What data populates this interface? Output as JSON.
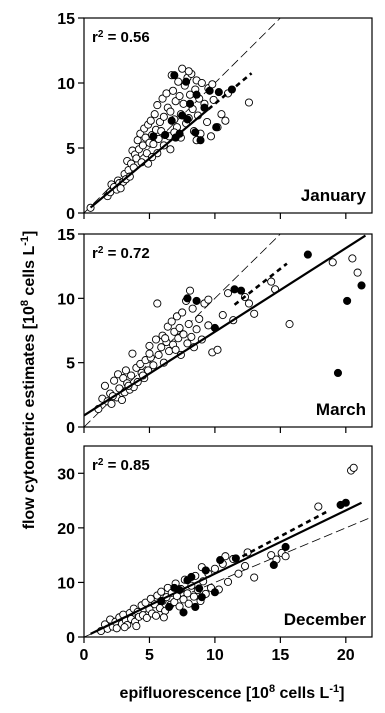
{
  "chart_data": {
    "type": "scatter",
    "xlabel_prefix": "epifluorescence [10",
    "xlabel_exp": "8",
    "xlabel_suffix": " cells L",
    "xlabel_unit_exp": "-1",
    "xlabel_close": "]",
    "ylabel_prefix": "flow cytometric estimates [10",
    "ylabel_exp": "8",
    "ylabel_suffix": " cells L",
    "ylabel_unit_exp": "-1",
    "ylabel_close": "]",
    "xlim": [
      0,
      22
    ],
    "xticks": [
      0,
      5,
      10,
      15,
      20
    ],
    "legend": "none",
    "grid": false,
    "colors": {
      "axis": "#000000",
      "open_marker_fill": "#ffffff",
      "filled_marker": "#000000"
    },
    "panels": [
      {
        "name": "January",
        "r2_text": "r",
        "r2_exp": "2",
        "r2_value": " = 0.56",
        "ylim": [
          0,
          15
        ],
        "yticks": [
          0,
          5,
          10,
          15
        ],
        "fit_line": {
          "slope": 0.84,
          "intercept": 0.0,
          "x": [
            0.5,
            9.5
          ]
        },
        "fit_line_dashed": {
          "x": [
            9.5,
            12.8
          ]
        },
        "one_to_one": {
          "x": [
            0,
            15
          ]
        },
        "open_points": [
          [
            0.5,
            0.4
          ],
          [
            1.8,
            1.3
          ],
          [
            2.0,
            1.6
          ],
          [
            2.1,
            2.2
          ],
          [
            2.3,
            2.0
          ],
          [
            2.5,
            1.8
          ],
          [
            2.6,
            2.5
          ],
          [
            2.7,
            2.3
          ],
          [
            3.0,
            2.4
          ],
          [
            3.1,
            3.0
          ],
          [
            3.2,
            2.6
          ],
          [
            3.3,
            4.0
          ],
          [
            3.4,
            3.3
          ],
          [
            3.6,
            3.8
          ],
          [
            3.7,
            4.8
          ],
          [
            3.8,
            3.5
          ],
          [
            3.9,
            4.5
          ],
          [
            4.0,
            4.2
          ],
          [
            4.1,
            5.6
          ],
          [
            4.2,
            4.9
          ],
          [
            4.3,
            6.1
          ],
          [
            4.4,
            3.9
          ],
          [
            4.5,
            5.2
          ],
          [
            4.6,
            6.5
          ],
          [
            4.7,
            5.8
          ],
          [
            4.8,
            4.6
          ],
          [
            4.9,
            6.8
          ],
          [
            5.0,
            5.4
          ],
          [
            5.1,
            7.1
          ],
          [
            5.2,
            6.0
          ],
          [
            5.3,
            5.3
          ],
          [
            5.4,
            7.6
          ],
          [
            5.5,
            6.4
          ],
          [
            5.6,
            8.3
          ],
          [
            5.7,
            5.7
          ],
          [
            5.8,
            7.0
          ],
          [
            5.9,
            6.3
          ],
          [
            6.0,
            8.8
          ],
          [
            6.1,
            7.4
          ],
          [
            6.2,
            6.0
          ],
          [
            6.3,
            9.2
          ],
          [
            6.4,
            8.1
          ],
          [
            6.5,
            5.9
          ],
          [
            6.6,
            7.8
          ],
          [
            6.7,
            10.6
          ],
          [
            6.8,
            9.4
          ],
          [
            6.9,
            7.2
          ],
          [
            7.0,
            8.6
          ],
          [
            7.1,
            6.6
          ],
          [
            7.2,
            10.1
          ],
          [
            7.3,
            9.0
          ],
          [
            7.4,
            7.6
          ],
          [
            7.5,
            11.1
          ],
          [
            7.6,
            8.4
          ],
          [
            7.7,
            9.8
          ],
          [
            7.8,
            6.9
          ],
          [
            7.9,
            10.4
          ],
          [
            8.0,
            7.3
          ],
          [
            8.1,
            9.1
          ],
          [
            8.2,
            10.7
          ],
          [
            8.3,
            8.0
          ],
          [
            8.4,
            6.3
          ],
          [
            8.5,
            9.5
          ],
          [
            8.6,
            10.2
          ],
          [
            8.7,
            7.5
          ],
          [
            8.8,
            8.8
          ],
          [
            8.9,
            6.1
          ],
          [
            9.0,
            10.0
          ],
          [
            9.2,
            8.4
          ],
          [
            9.4,
            7.0
          ],
          [
            9.5,
            9.6
          ],
          [
            9.7,
            5.9
          ],
          [
            9.9,
            8.7
          ],
          [
            10.2,
            6.6
          ],
          [
            10.5,
            7.6
          ],
          [
            10.8,
            7.1
          ],
          [
            11.0,
            9.2
          ],
          [
            12.6,
            8.5
          ],
          [
            6.1,
            5.2
          ],
          [
            5.6,
            4.6
          ],
          [
            4.9,
            3.8
          ],
          [
            7.4,
            5.8
          ],
          [
            8.6,
            5.6
          ],
          [
            3.5,
            2.8
          ],
          [
            2.8,
            1.9
          ],
          [
            6.9,
            6.2
          ],
          [
            9.8,
            9.9
          ],
          [
            8.0,
            10.9
          ],
          [
            5.2,
            4.3
          ],
          [
            6.6,
            4.9
          ]
        ],
        "filled_points": [
          [
            5.3,
            5.9
          ],
          [
            6.2,
            6.0
          ],
          [
            6.7,
            7.1
          ],
          [
            6.9,
            10.6
          ],
          [
            7.0,
            5.8
          ],
          [
            7.3,
            6.1
          ],
          [
            7.5,
            7.5
          ],
          [
            7.8,
            10.1
          ],
          [
            8.1,
            8.4
          ],
          [
            8.5,
            6.2
          ],
          [
            8.9,
            5.6
          ],
          [
            9.2,
            8.1
          ],
          [
            9.6,
            9.4
          ],
          [
            10.1,
            6.6
          ],
          [
            10.3,
            9.3
          ],
          [
            11.3,
            9.5
          ],
          [
            7.9,
            7.2
          ],
          [
            8.6,
            9.1
          ]
        ]
      },
      {
        "name": "March",
        "r2_text": "r",
        "r2_exp": "2",
        "r2_value": " = 0.72",
        "ylim": [
          0,
          15
        ],
        "yticks": [
          0,
          5,
          10,
          15
        ],
        "fit_line": {
          "slope": 0.65,
          "intercept": 0.9,
          "x": [
            0,
            21.5
          ]
        },
        "fit_line_dashed": {
          "x": [
            11.5,
            15.5
          ],
          "slope": 0.8,
          "intercept": 0.3
        },
        "one_to_one": {
          "x": [
            0,
            15
          ]
        },
        "open_points": [
          [
            1.1,
            1.4
          ],
          [
            1.4,
            2.2
          ],
          [
            1.6,
            3.2
          ],
          [
            1.8,
            2.0
          ],
          [
            2.0,
            2.6
          ],
          [
            2.1,
            1.8
          ],
          [
            2.3,
            3.6
          ],
          [
            2.5,
            2.3
          ],
          [
            2.6,
            4.1
          ],
          [
            2.7,
            3.0
          ],
          [
            2.9,
            2.1
          ],
          [
            3.0,
            3.8
          ],
          [
            3.1,
            2.7
          ],
          [
            3.2,
            4.4
          ],
          [
            3.3,
            3.4
          ],
          [
            3.5,
            2.9
          ],
          [
            3.6,
            4.0
          ],
          [
            3.7,
            5.7
          ],
          [
            3.8,
            3.1
          ],
          [
            4.0,
            4.6
          ],
          [
            4.1,
            3.5
          ],
          [
            4.3,
            4.9
          ],
          [
            4.4,
            4.2
          ],
          [
            4.6,
            3.8
          ],
          [
            4.7,
            5.2
          ],
          [
            4.9,
            4.4
          ],
          [
            5.0,
            6.3
          ],
          [
            5.1,
            5.4
          ],
          [
            5.3,
            4.8
          ],
          [
            5.5,
            6.8
          ],
          [
            5.6,
            9.6
          ],
          [
            5.7,
            5.6
          ],
          [
            5.9,
            6.2
          ],
          [
            6.0,
            7.1
          ],
          [
            6.1,
            5.0
          ],
          [
            6.3,
            6.6
          ],
          [
            6.4,
            7.8
          ],
          [
            6.5,
            5.9
          ],
          [
            6.7,
            8.2
          ],
          [
            6.8,
            6.4
          ],
          [
            6.9,
            7.4
          ],
          [
            7.0,
            6.0
          ],
          [
            7.1,
            8.6
          ],
          [
            7.2,
            6.9
          ],
          [
            7.3,
            7.7
          ],
          [
            7.4,
            5.6
          ],
          [
            7.5,
            8.9
          ],
          [
            7.6,
            7.2
          ],
          [
            7.8,
            9.8
          ],
          [
            7.9,
            6.5
          ],
          [
            8.0,
            8.0
          ],
          [
            8.2,
            7.0
          ],
          [
            8.3,
            9.2
          ],
          [
            8.4,
            6.2
          ],
          [
            8.6,
            7.6
          ],
          [
            8.8,
            8.4
          ],
          [
            9.0,
            6.8
          ],
          [
            9.2,
            9.6
          ],
          [
            9.5,
            7.9
          ],
          [
            9.8,
            5.8
          ],
          [
            10.2,
            6.0
          ],
          [
            10.6,
            8.7
          ],
          [
            11.0,
            10.4
          ],
          [
            11.4,
            8.3
          ],
          [
            12.3,
            10.1
          ],
          [
            12.6,
            9.6
          ],
          [
            13.0,
            8.8
          ],
          [
            14.6,
            10.7
          ],
          [
            15.7,
            8.0
          ],
          [
            14.3,
            11.3
          ],
          [
            19.0,
            12.8
          ],
          [
            20.5,
            13.1
          ],
          [
            20.9,
            12.0
          ],
          [
            9.5,
            9.9
          ],
          [
            8.1,
            10.6
          ],
          [
            6.2,
            6.9
          ],
          [
            5.0,
            5.7
          ],
          [
            4.5,
            4.0
          ],
          [
            3.4,
            3.2
          ],
          [
            2.2,
            2.4
          ]
        ],
        "filled_points": [
          [
            7.9,
            10.0
          ],
          [
            8.6,
            9.8
          ],
          [
            10.0,
            7.7
          ],
          [
            11.5,
            10.7
          ],
          [
            12.0,
            10.6
          ],
          [
            17.1,
            13.4
          ],
          [
            19.4,
            4.2
          ],
          [
            20.1,
            9.8
          ],
          [
            21.2,
            11.0
          ]
        ]
      },
      {
        "name": "December",
        "r2_text": "r",
        "r2_exp": "2",
        "r2_value": " = 0.85",
        "ylim": [
          0,
          35
        ],
        "yticks": [
          0,
          10,
          20,
          30
        ],
        "fit_line": {
          "slope": 1.16,
          "intercept": 0.0,
          "x": [
            0.5,
            21.2
          ]
        },
        "fit_line_dashed": {
          "x": [
            11.5,
            18.5
          ],
          "slope": 1.27,
          "intercept": -0.6
        },
        "one_to_one": {
          "x": [
            0,
            22
          ]
        },
        "open_points": [
          [
            1.3,
            1.1
          ],
          [
            1.6,
            2.3
          ],
          [
            1.8,
            1.5
          ],
          [
            2.0,
            3.2
          ],
          [
            2.2,
            1.9
          ],
          [
            2.4,
            2.8
          ],
          [
            2.5,
            1.6
          ],
          [
            2.7,
            3.6
          ],
          [
            2.9,
            2.4
          ],
          [
            3.0,
            4.1
          ],
          [
            3.2,
            3.0
          ],
          [
            3.3,
            2.2
          ],
          [
            3.5,
            4.4
          ],
          [
            3.6,
            3.3
          ],
          [
            3.8,
            5.2
          ],
          [
            3.9,
            2.8
          ],
          [
            4.1,
            4.6
          ],
          [
            4.2,
            3.7
          ],
          [
            4.4,
            5.8
          ],
          [
            4.5,
            4.0
          ],
          [
            4.7,
            6.3
          ],
          [
            4.8,
            3.5
          ],
          [
            5.0,
            5.1
          ],
          [
            5.1,
            7.0
          ],
          [
            5.2,
            4.3
          ],
          [
            5.4,
            6.0
          ],
          [
            5.5,
            3.9
          ],
          [
            5.6,
            7.6
          ],
          [
            5.8,
            5.3
          ],
          [
            5.9,
            8.3
          ],
          [
            6.0,
            6.6
          ],
          [
            6.2,
            4.8
          ],
          [
            6.3,
            7.3
          ],
          [
            6.4,
            9.0
          ],
          [
            6.6,
            5.9
          ],
          [
            6.7,
            8.1
          ],
          [
            6.9,
            6.4
          ],
          [
            7.0,
            9.8
          ],
          [
            7.1,
            7.5
          ],
          [
            7.3,
            5.6
          ],
          [
            7.4,
            8.8
          ],
          [
            7.6,
            6.9
          ],
          [
            7.7,
            10.5
          ],
          [
            7.9,
            8.0
          ],
          [
            8.0,
            6.1
          ],
          [
            8.2,
            9.4
          ],
          [
            8.4,
            7.4
          ],
          [
            8.5,
            11.2
          ],
          [
            8.7,
            8.6
          ],
          [
            8.9,
            6.6
          ],
          [
            9.1,
            10.2
          ],
          [
            9.3,
            7.9
          ],
          [
            9.5,
            11.6
          ],
          [
            9.7,
            9.0
          ],
          [
            10.0,
            12.5
          ],
          [
            10.3,
            8.7
          ],
          [
            10.6,
            13.4
          ],
          [
            11.0,
            10.1
          ],
          [
            11.4,
            14.3
          ],
          [
            11.8,
            11.6
          ],
          [
            12.3,
            13.0
          ],
          [
            13.0,
            10.9
          ],
          [
            14.3,
            15.0
          ],
          [
            14.7,
            14.2
          ],
          [
            15.1,
            15.4
          ],
          [
            15.4,
            14.8
          ],
          [
            17.9,
            23.9
          ],
          [
            20.4,
            30.5
          ],
          [
            20.6,
            31.0
          ],
          [
            12.5,
            15.5
          ],
          [
            6.1,
            3.6
          ],
          [
            4.0,
            2.0
          ],
          [
            3.1,
            1.8
          ],
          [
            9.0,
            12.8
          ],
          [
            10.8,
            14.8
          ]
        ],
        "filled_points": [
          [
            5.9,
            6.6
          ],
          [
            6.5,
            5.5
          ],
          [
            6.9,
            9.0
          ],
          [
            7.3,
            8.6
          ],
          [
            7.6,
            4.5
          ],
          [
            7.9,
            10.4
          ],
          [
            8.2,
            11.0
          ],
          [
            8.5,
            5.5
          ],
          [
            9.0,
            7.3
          ],
          [
            9.3,
            12.2
          ],
          [
            10.0,
            8.2
          ],
          [
            10.4,
            14.1
          ],
          [
            11.6,
            14.4
          ],
          [
            14.5,
            13.2
          ],
          [
            15.4,
            16.5
          ],
          [
            19.6,
            24.2
          ],
          [
            20.0,
            24.6
          ],
          [
            8.8,
            8.9
          ]
        ]
      }
    ]
  }
}
